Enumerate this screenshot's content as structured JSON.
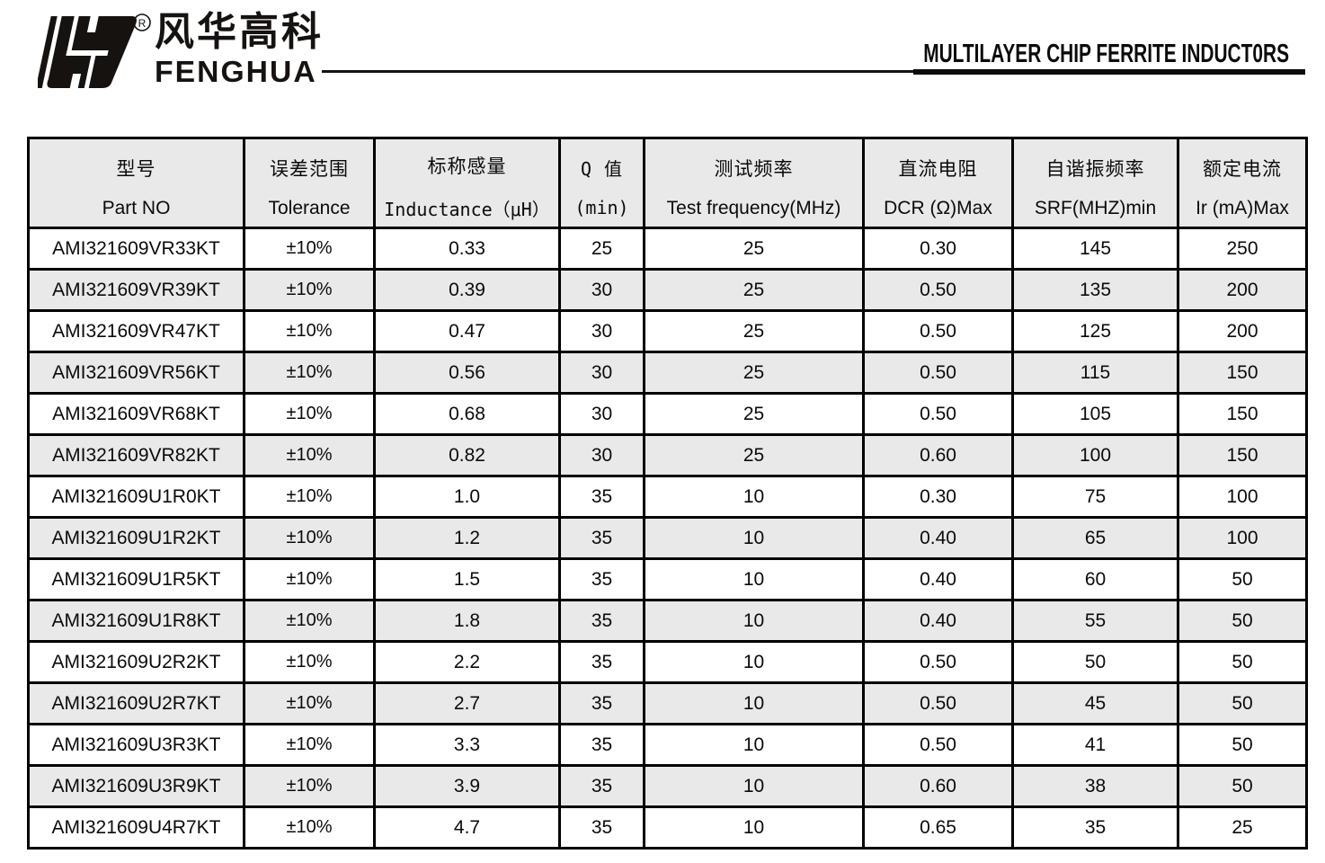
{
  "header": {
    "brand_cn": "风华高科",
    "brand_en": "FENGHUA",
    "registered_mark": "®",
    "title": "MULTILAYER CHIP FERRITE INDUCT0RS"
  },
  "table": {
    "columns": [
      {
        "cn": "型号",
        "en": "Part NO"
      },
      {
        "cn": "误差范围",
        "en": "Tolerance"
      },
      {
        "cn": "标称感量",
        "en": "Inductance（μH）"
      },
      {
        "cn": "Q 值",
        "en": "(min)"
      },
      {
        "cn": "测试频率",
        "en": "Test frequency(MHz)"
      },
      {
        "cn": "直流电阻",
        "en": "DCR (Ω)Max"
      },
      {
        "cn": "自谐振频率",
        "en": "SRF(MHZ)min"
      },
      {
        "cn": "额定电流",
        "en": "Ir (mA)Max"
      }
    ],
    "rows": [
      [
        "AMI321609VR33KT",
        "±10%",
        "0.33",
        "25",
        "25",
        "0.30",
        "145",
        "250"
      ],
      [
        "AMI321609VR39KT",
        "±10%",
        "0.39",
        "30",
        "25",
        "0.50",
        "135",
        "200"
      ],
      [
        "AMI321609VR47KT",
        "±10%",
        "0.47",
        "30",
        "25",
        "0.50",
        "125",
        "200"
      ],
      [
        "AMI321609VR56KT",
        "±10%",
        "0.56",
        "30",
        "25",
        "0.50",
        "115",
        "150"
      ],
      [
        "AMI321609VR68KT",
        "±10%",
        "0.68",
        "30",
        "25",
        "0.50",
        "105",
        "150"
      ],
      [
        "AMI321609VR82KT",
        "±10%",
        "0.82",
        "30",
        "25",
        "0.60",
        "100",
        "150"
      ],
      [
        "AMI321609U1R0KT",
        "±10%",
        "1.0",
        "35",
        "10",
        "0.30",
        "75",
        "100"
      ],
      [
        "AMI321609U1R2KT",
        "±10%",
        "1.2",
        "35",
        "10",
        "0.40",
        "65",
        "100"
      ],
      [
        "AMI321609U1R5KT",
        "±10%",
        "1.5",
        "35",
        "10",
        "0.40",
        "60",
        "50"
      ],
      [
        "AMI321609U1R8KT",
        "±10%",
        "1.8",
        "35",
        "10",
        "0.40",
        "55",
        "50"
      ],
      [
        "AMI321609U2R2KT",
        "±10%",
        "2.2",
        "35",
        "10",
        "0.50",
        "50",
        "50"
      ],
      [
        "AMI321609U2R7KT",
        "±10%",
        "2.7",
        "35",
        "10",
        "0.50",
        "45",
        "50"
      ],
      [
        "AMI321609U3R3KT",
        "±10%",
        "3.3",
        "35",
        "10",
        "0.50",
        "41",
        "50"
      ],
      [
        "AMI321609U3R9KT",
        "±10%",
        "3.9",
        "35",
        "10",
        "0.60",
        "38",
        "50"
      ],
      [
        "AMI321609U4R7KT",
        "±10%",
        "4.7",
        "35",
        "10",
        "0.65",
        "35",
        "25"
      ]
    ]
  },
  "colors": {
    "row_alt": "#e9e9e9",
    "border": "#000000",
    "text": "#0b0b0b"
  }
}
